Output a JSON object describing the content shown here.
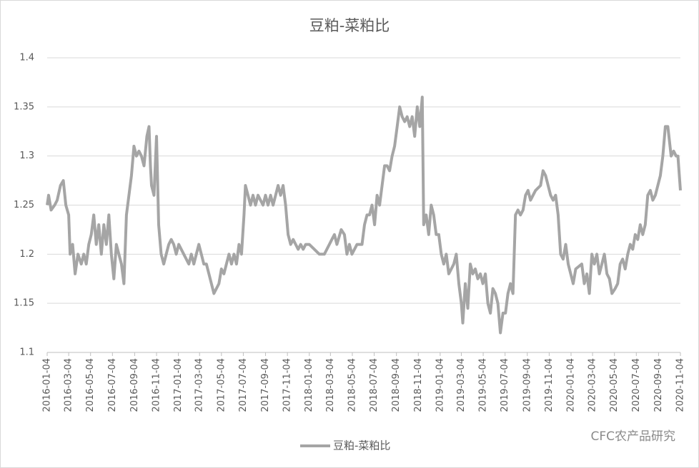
{
  "chart_data": {
    "type": "line",
    "title": "豆粕-菜粕比",
    "watermark": "CFC农产品研究",
    "xlim": [
      "2016-01-04",
      "2020-11-04"
    ],
    "xticks": [
      "2016-01-04",
      "2016-03-04",
      "2016-05-04",
      "2016-07-04",
      "2016-09-04",
      "2016-11-04",
      "2017-01-04",
      "2017-03-04",
      "2017-05-04",
      "2017-07-04",
      "2017-09-04",
      "2017-11-04",
      "2018-01-04",
      "2018-03-04",
      "2018-05-04",
      "2018-07-04",
      "2018-09-04",
      "2018-11-04",
      "2019-01-04",
      "2019-03-04",
      "2019-05-04",
      "2019-07-04",
      "2019-09-04",
      "2019-11-04",
      "2020-01-04",
      "2020-03-04",
      "2020-05-04",
      "2020-07-04",
      "2020-09-04",
      "2020-11-04"
    ],
    "ylim": [
      1.1,
      1.4
    ],
    "yticks": [
      1.1,
      1.15,
      1.2,
      1.25,
      1.3,
      1.35,
      1.4
    ],
    "grid": true,
    "x": [
      "2016-01-04",
      "2016-01-08",
      "2016-01-15",
      "2016-01-25",
      "2016-02-01",
      "2016-02-10",
      "2016-02-18",
      "2016-02-25",
      "2016-03-04",
      "2016-03-08",
      "2016-03-15",
      "2016-03-22",
      "2016-03-30",
      "2016-04-08",
      "2016-04-15",
      "2016-04-22",
      "2016-04-29",
      "2016-05-06",
      "2016-05-13",
      "2016-05-20",
      "2016-05-27",
      "2016-06-03",
      "2016-06-10",
      "2016-06-17",
      "2016-06-24",
      "2016-07-01",
      "2016-07-08",
      "2016-07-15",
      "2016-07-22",
      "2016-07-29",
      "2016-08-05",
      "2016-08-12",
      "2016-08-19",
      "2016-08-26",
      "2016-09-02",
      "2016-09-09",
      "2016-09-16",
      "2016-09-23",
      "2016-09-30",
      "2016-10-08",
      "2016-10-14",
      "2016-10-18",
      "2016-10-21",
      "2016-10-28",
      "2016-11-04",
      "2016-11-10",
      "2016-11-17",
      "2016-11-24",
      "2016-12-01",
      "2016-12-08",
      "2016-12-15",
      "2016-12-22",
      "2016-12-29",
      "2017-01-05",
      "2017-01-12",
      "2017-01-19",
      "2017-02-02",
      "2017-02-09",
      "2017-02-16",
      "2017-02-23",
      "2017-03-02",
      "2017-03-09",
      "2017-03-16",
      "2017-03-23",
      "2017-03-30",
      "2017-04-06",
      "2017-04-13",
      "2017-04-20",
      "2017-04-27",
      "2017-05-04",
      "2017-05-11",
      "2017-05-18",
      "2017-05-25",
      "2017-06-01",
      "2017-06-08",
      "2017-06-15",
      "2017-06-22",
      "2017-06-29",
      "2017-07-06",
      "2017-07-10",
      "2017-07-17",
      "2017-07-24",
      "2017-07-31",
      "2017-08-07",
      "2017-08-14",
      "2017-08-21",
      "2017-08-28",
      "2017-09-04",
      "2017-09-11",
      "2017-09-18",
      "2017-09-25",
      "2017-10-09",
      "2017-10-16",
      "2017-10-23",
      "2017-10-30",
      "2017-11-06",
      "2017-11-13",
      "2017-11-20",
      "2017-11-27",
      "2017-12-04",
      "2017-12-11",
      "2017-12-18",
      "2017-12-25",
      "2018-01-04",
      "2018-01-18",
      "2018-02-01",
      "2018-02-15",
      "2018-03-01",
      "2018-03-08",
      "2018-03-15",
      "2018-03-22",
      "2018-04-03",
      "2018-04-12",
      "2018-04-19",
      "2018-04-26",
      "2018-05-03",
      "2018-05-17",
      "2018-05-31",
      "2018-06-07",
      "2018-06-14",
      "2018-06-21",
      "2018-06-28",
      "2018-07-05",
      "2018-07-12",
      "2018-07-19",
      "2018-07-26",
      "2018-08-02",
      "2018-08-09",
      "2018-08-16",
      "2018-08-23",
      "2018-08-30",
      "2018-09-06",
      "2018-09-13",
      "2018-09-20",
      "2018-09-27",
      "2018-10-04",
      "2018-10-11",
      "2018-10-18",
      "2018-10-25",
      "2018-11-01",
      "2018-11-08",
      "2018-11-15",
      "2018-11-19",
      "2018-11-26",
      "2018-12-03",
      "2018-12-10",
      "2018-12-17",
      "2018-12-24",
      "2018-12-31",
      "2019-01-07",
      "2019-01-14",
      "2019-01-21",
      "2019-01-28",
      "2019-02-11",
      "2019-02-18",
      "2019-02-25",
      "2019-03-04",
      "2019-03-08",
      "2019-03-15",
      "2019-03-22",
      "2019-03-29",
      "2019-04-05",
      "2019-04-12",
      "2019-04-19",
      "2019-04-26",
      "2019-05-03",
      "2019-05-10",
      "2019-05-17",
      "2019-05-24",
      "2019-05-31",
      "2019-06-07",
      "2019-06-14",
      "2019-06-21",
      "2019-06-28",
      "2019-07-05",
      "2019-07-12",
      "2019-07-19",
      "2019-07-26",
      "2019-08-02",
      "2019-08-09",
      "2019-08-16",
      "2019-08-23",
      "2019-08-30",
      "2019-09-06",
      "2019-09-13",
      "2019-09-20",
      "2019-09-27",
      "2019-10-11",
      "2019-10-18",
      "2019-10-25",
      "2019-11-01",
      "2019-11-08",
      "2019-11-15",
      "2019-11-22",
      "2019-11-29",
      "2019-12-06",
      "2019-12-13",
      "2019-12-20",
      "2019-12-27",
      "2020-01-03",
      "2020-01-10",
      "2020-01-17",
      "2020-02-03",
      "2020-02-10",
      "2020-02-17",
      "2020-02-24",
      "2020-03-02",
      "2020-03-09",
      "2020-03-16",
      "2020-03-23",
      "2020-03-30",
      "2020-04-06",
      "2020-04-13",
      "2020-04-20",
      "2020-04-27",
      "2020-05-06",
      "2020-05-13",
      "2020-05-20",
      "2020-05-27",
      "2020-06-03",
      "2020-06-10",
      "2020-06-17",
      "2020-06-24",
      "2020-07-01",
      "2020-07-08",
      "2020-07-15",
      "2020-07-22",
      "2020-07-29",
      "2020-08-05",
      "2020-08-12",
      "2020-08-19",
      "2020-08-26",
      "2020-09-02",
      "2020-09-09",
      "2020-09-16",
      "2020-09-23",
      "2020-09-30",
      "2020-10-09",
      "2020-10-16",
      "2020-10-23",
      "2020-10-28",
      "2020-11-04"
    ],
    "series": [
      {
        "name": "豆粕-菜粕比",
        "color": "#a5a5a5",
        "values": [
          1.25,
          1.26,
          1.245,
          1.25,
          1.255,
          1.27,
          1.275,
          1.25,
          1.24,
          1.2,
          1.21,
          1.18,
          1.2,
          1.19,
          1.2,
          1.19,
          1.21,
          1.22,
          1.24,
          1.21,
          1.23,
          1.2,
          1.23,
          1.21,
          1.24,
          1.2,
          1.175,
          1.21,
          1.2,
          1.19,
          1.17,
          1.24,
          1.26,
          1.28,
          1.31,
          1.3,
          1.305,
          1.3,
          1.29,
          1.32,
          1.33,
          1.29,
          1.27,
          1.26,
          1.32,
          1.23,
          1.2,
          1.19,
          1.2,
          1.21,
          1.215,
          1.21,
          1.2,
          1.21,
          1.205,
          1.2,
          1.19,
          1.2,
          1.19,
          1.2,
          1.21,
          1.2,
          1.19,
          1.19,
          1.18,
          1.17,
          1.16,
          1.165,
          1.17,
          1.185,
          1.18,
          1.19,
          1.2,
          1.19,
          1.2,
          1.19,
          1.21,
          1.2,
          1.24,
          1.27,
          1.26,
          1.25,
          1.26,
          1.25,
          1.26,
          1.255,
          1.25,
          1.26,
          1.25,
          1.26,
          1.25,
          1.27,
          1.26,
          1.27,
          1.25,
          1.22,
          1.21,
          1.215,
          1.21,
          1.205,
          1.21,
          1.205,
          1.21,
          1.21,
          1.205,
          1.2,
          1.2,
          1.21,
          1.215,
          1.22,
          1.21,
          1.225,
          1.22,
          1.2,
          1.21,
          1.2,
          1.21,
          1.21,
          1.23,
          1.24,
          1.24,
          1.25,
          1.23,
          1.26,
          1.25,
          1.27,
          1.29,
          1.29,
          1.285,
          1.3,
          1.31,
          1.33,
          1.35,
          1.34,
          1.335,
          1.34,
          1.33,
          1.34,
          1.32,
          1.35,
          1.33,
          1.36,
          1.23,
          1.24,
          1.22,
          1.25,
          1.24,
          1.22,
          1.22,
          1.2,
          1.19,
          1.2,
          1.18,
          1.19,
          1.2,
          1.17,
          1.15,
          1.13,
          1.17,
          1.145,
          1.19,
          1.18,
          1.185,
          1.175,
          1.18,
          1.17,
          1.18,
          1.15,
          1.14,
          1.165,
          1.16,
          1.15,
          1.12,
          1.14,
          1.14,
          1.16,
          1.17,
          1.16,
          1.24,
          1.245,
          1.24,
          1.245,
          1.26,
          1.265,
          1.255,
          1.26,
          1.265,
          1.27,
          1.285,
          1.28,
          1.27,
          1.26,
          1.255,
          1.26,
          1.24,
          1.2,
          1.195,
          1.21,
          1.19,
          1.18,
          1.17,
          1.185,
          1.19,
          1.17,
          1.18,
          1.16,
          1.2,
          1.19,
          1.2,
          1.18,
          1.19,
          1.2,
          1.18,
          1.175,
          1.16,
          1.165,
          1.17,
          1.19,
          1.195,
          1.185,
          1.2,
          1.21,
          1.205,
          1.22,
          1.215,
          1.23,
          1.22,
          1.23,
          1.26,
          1.265,
          1.255,
          1.26,
          1.27,
          1.28,
          1.3,
          1.33,
          1.33,
          1.3,
          1.305,
          1.3,
          1.3,
          1.265
        ]
      }
    ],
    "legend": "bottom"
  }
}
